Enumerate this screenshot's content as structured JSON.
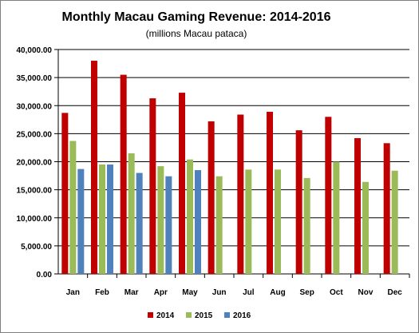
{
  "chart_data": {
    "type": "bar",
    "title": "Monthly Macau Gaming Revenue: 2014-2016",
    "subtitle": "(millions Macau pataca)",
    "xlabel": "",
    "ylabel": "",
    "categories": [
      "Jan",
      "Feb",
      "Mar",
      "Apr",
      "May",
      "Jun",
      "Jul",
      "Aug",
      "Sep",
      "Oct",
      "Nov",
      "Dec"
    ],
    "series": [
      {
        "name": "2014",
        "color": "#c00000",
        "values": [
          28700,
          38000,
          35500,
          31300,
          32300,
          27200,
          28400,
          28900,
          25600,
          28000,
          24200,
          23300
        ]
      },
      {
        "name": "2015",
        "color": "#9bbb59",
        "values": [
          23700,
          19500,
          21500,
          19200,
          20400,
          17400,
          18600,
          18600,
          17100,
          20000,
          16400,
          18400
        ]
      },
      {
        "name": "2016",
        "color": "#4f81bd",
        "values": [
          18700,
          19500,
          18000,
          17400,
          18500,
          null,
          null,
          null,
          null,
          null,
          null,
          null
        ]
      }
    ],
    "ylim": [
      0,
      40000
    ],
    "yticks": [
      0,
      5000,
      10000,
      15000,
      20000,
      25000,
      30000,
      35000,
      40000
    ],
    "ytick_labels": [
      "0.00",
      "5,000.00",
      "10,000.00",
      "15,000.00",
      "20,000.00",
      "25,000.00",
      "30,000.00",
      "35,000.00",
      "40,000.00"
    ],
    "grid": true,
    "legend_position": "bottom"
  }
}
